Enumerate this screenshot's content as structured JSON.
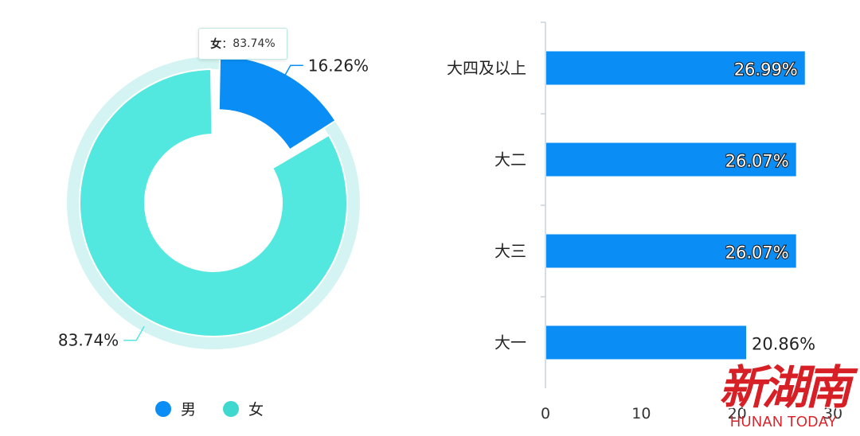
{
  "chart_data": [
    {
      "type": "pie",
      "donut": true,
      "slices": [
        {
          "label": "男",
          "value": 16.26,
          "value_label": "16.26%",
          "color": "#0a8ef5"
        },
        {
          "label": "女",
          "value": 83.74,
          "value_label": "83.74%",
          "color": "#52e8df"
        }
      ],
      "tooltip": {
        "label": "女",
        "value": "83.74%"
      },
      "legend": {
        "position": "bottom-center",
        "items": [
          "男",
          "女"
        ]
      }
    },
    {
      "type": "bar",
      "orientation": "horizontal",
      "categories": [
        "大四及以上",
        "大二",
        "大三",
        "大一"
      ],
      "values": [
        26.99,
        26.07,
        26.07,
        20.86
      ],
      "value_labels": [
        "26.99%",
        "26.07%",
        "26.07%",
        "20.86%"
      ],
      "xlim": [
        0,
        30
      ],
      "x_ticks": [
        "0",
        "10",
        "20",
        "30"
      ],
      "bar_color": "#0a8ef5"
    }
  ],
  "watermark": {
    "name": "新湖南",
    "sub": "HUNAN TODAY"
  }
}
